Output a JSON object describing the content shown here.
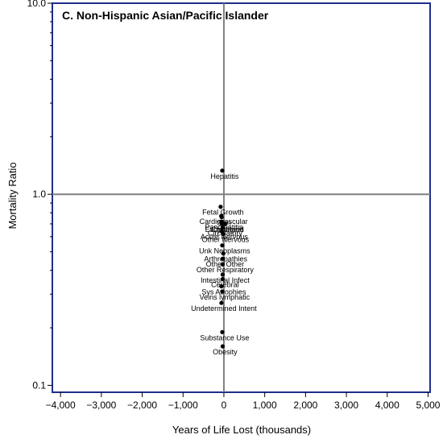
{
  "chart_data": {
    "type": "scatter",
    "title": "C. Non-Hispanic Asian/Pacific Islander",
    "xlabel": "Years of Life Lost (thousands)",
    "ylabel": "Mortality Ratio",
    "xlim": [
      -4200,
      5050
    ],
    "ylim": [
      0.092,
      10.0
    ],
    "yscale": "log",
    "x_ticks": [
      -4000,
      -3000,
      -2000,
      -1000,
      0,
      1000,
      2000,
      3000,
      4000,
      5000
    ],
    "x_tick_labels": [
      "−4,000",
      "−3,000",
      "−2,000",
      "−1,000",
      "0",
      "1,000",
      "2,000",
      "3,000",
      "4,000",
      "5,000"
    ],
    "y_ticks": [
      0.1,
      1.0,
      10.0
    ],
    "y_tick_labels": [
      "0.1",
      "1.0",
      "10.0"
    ],
    "reference_lines": {
      "x": 0,
      "y": 1.0
    },
    "grid": false,
    "points": [
      {
        "label": "Hepatitis",
        "x": -40,
        "y": 1.33
      },
      {
        "label": "Fetal Growth",
        "x": -80,
        "y": 0.86
      },
      {
        "label": "Cardiovascular",
        "x": -65,
        "y": 0.77
      },
      {
        "label": "Skin",
        "x": -55,
        "y": 0.76
      },
      {
        "label": "Pancreatitis",
        "x": -60,
        "y": 0.72
      },
      {
        "label": "Esophageal",
        "x": -50,
        "y": 0.7
      },
      {
        "label": "Childhood",
        "x": 30,
        "y": 0.7
      },
      {
        "label": "Circulatory",
        "x": -30,
        "y": 0.67
      },
      {
        "label": "Acute Nervous",
        "x": -50,
        "y": 0.64
      },
      {
        "label": "Other Nervous",
        "x": -20,
        "y": 0.62
      },
      {
        "label": "Unk Neoplasms",
        "x": -40,
        "y": 0.54
      },
      {
        "label": "Arthropathies",
        "x": -15,
        "y": 0.49
      },
      {
        "label": "Other Other",
        "x": -30,
        "y": 0.46
      },
      {
        "label": "Other Respiratory",
        "x": -30,
        "y": 0.43
      },
      {
        "label": "Intestinal Infect",
        "x": -30,
        "y": 0.38
      },
      {
        "label": "Cerebral",
        "x": -30,
        "y": 0.36
      },
      {
        "label": "Sys Atrophies",
        "x": -60,
        "y": 0.33
      },
      {
        "label": "Veins lymphatic",
        "x": -40,
        "y": 0.31
      },
      {
        "label": "Undetermined Intent",
        "x": -60,
        "y": 0.27
      },
      {
        "label": "Substance Use",
        "x": -40,
        "y": 0.19
      },
      {
        "label": "Obesity",
        "x": -30,
        "y": 0.16
      }
    ]
  }
}
